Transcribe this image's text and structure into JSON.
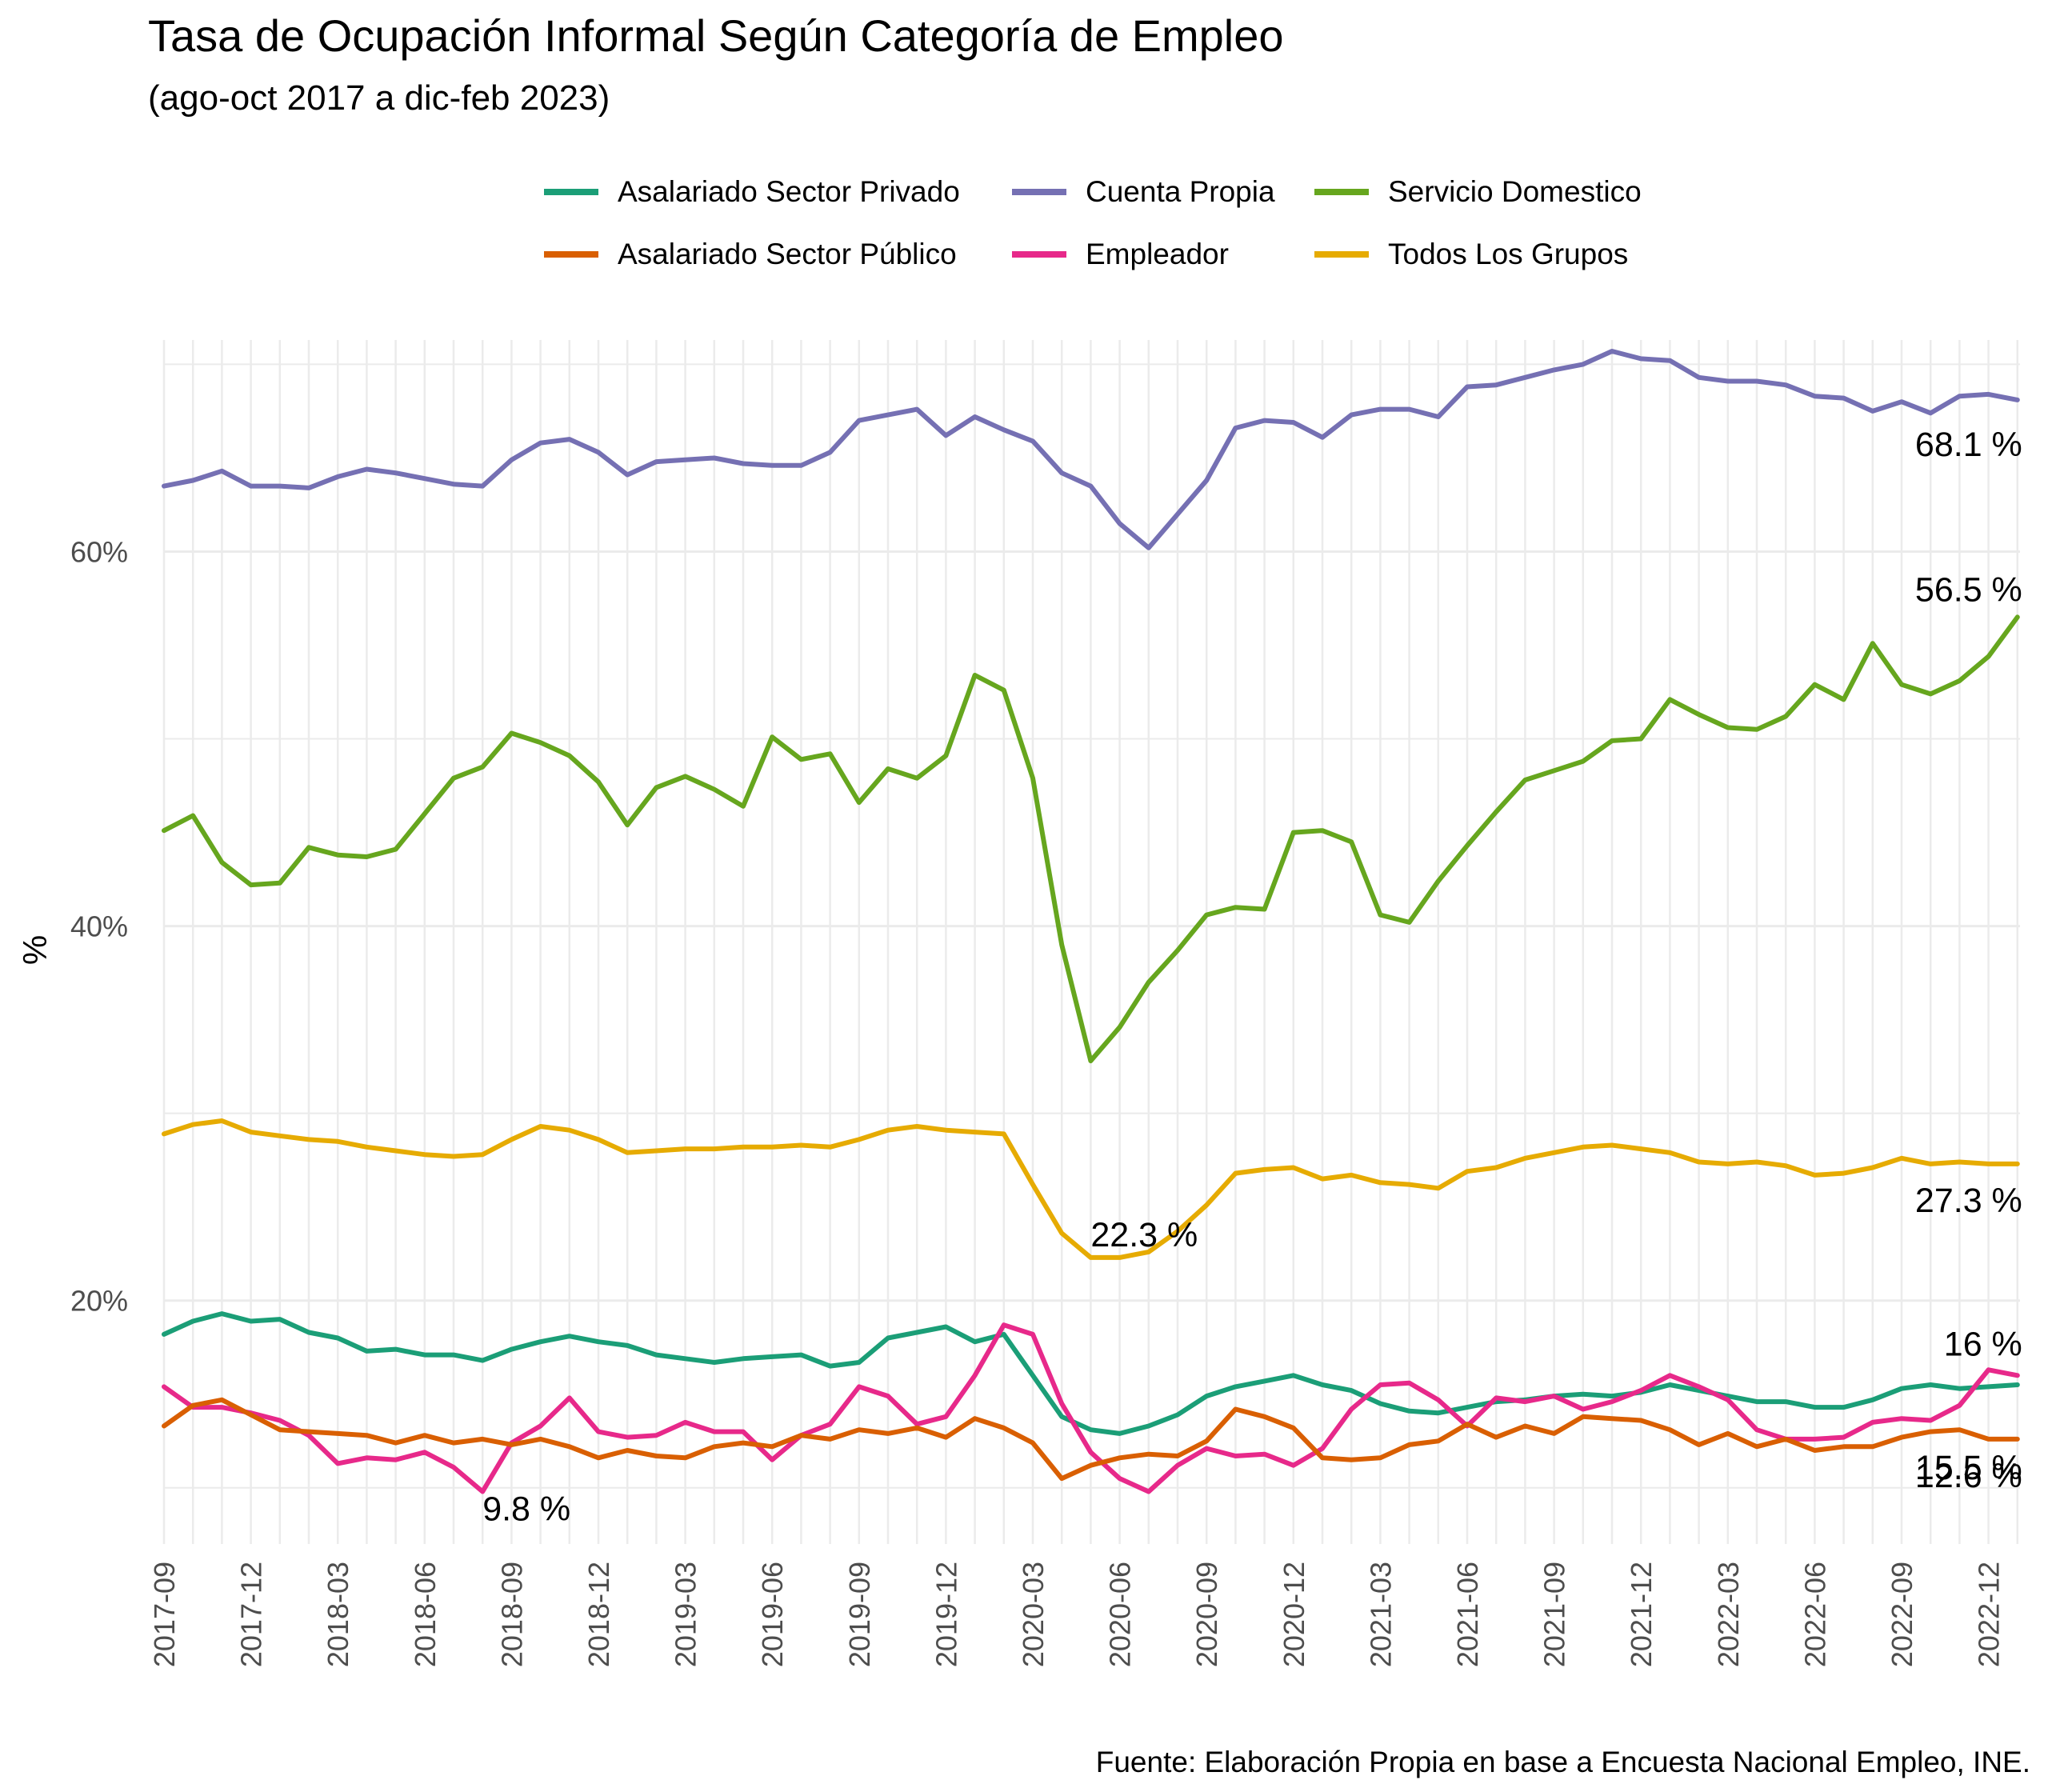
{
  "title": "Tasa de Ocupación Informal Según Categoría de Empleo",
  "subtitle": "(ago-oct 2017 a dic-feb 2023)",
  "caption": "Fuente: Elaboración Propia en base a Encuesta Nacional Empleo, INE.",
  "colors": {
    "privado": "#1B9E77",
    "publico": "#D95F02",
    "propia": "#7570B3",
    "empleador": "#E7298A",
    "domestico": "#66A61E",
    "todos": "#E6AB02"
  },
  "legend": [
    {
      "label": "Asalariado Sector Privado",
      "color": "#1B9E77"
    },
    {
      "label": "Cuenta Propia",
      "color": "#7570B3"
    },
    {
      "label": "Servicio Domestico",
      "color": "#66A61E"
    },
    {
      "label": "Asalariado Sector Público",
      "color": "#D95F02"
    },
    {
      "label": "Empleador",
      "color": "#E7298A"
    },
    {
      "label": "Todos Los Grupos",
      "color": "#E6AB02"
    }
  ],
  "chart_data": {
    "type": "line",
    "title": "Tasa de Ocupación Informal Según Categoría de Empleo",
    "subtitle": "(ago-oct 2017 a dic-feb 2023)",
    "xlabel": "",
    "ylabel": "%",
    "x": [
      "2017-09",
      "2017-10",
      "2017-11",
      "2017-12",
      "2018-01",
      "2018-02",
      "2018-03",
      "2018-04",
      "2018-05",
      "2018-06",
      "2018-07",
      "2018-08",
      "2018-09",
      "2018-10",
      "2018-11",
      "2018-12",
      "2019-01",
      "2019-02",
      "2019-03",
      "2019-04",
      "2019-05",
      "2019-06",
      "2019-07",
      "2019-08",
      "2019-09",
      "2019-10",
      "2019-11",
      "2019-12",
      "2020-01",
      "2020-02",
      "2020-03",
      "2020-04",
      "2020-05",
      "2020-06",
      "2020-07",
      "2020-08",
      "2020-09",
      "2020-10",
      "2020-11",
      "2020-12",
      "2021-01",
      "2021-02",
      "2021-03",
      "2021-04",
      "2021-05",
      "2021-06",
      "2021-07",
      "2021-08",
      "2021-09",
      "2021-10",
      "2021-11",
      "2021-12",
      "2022-01",
      "2022-02",
      "2022-03",
      "2022-04",
      "2022-05",
      "2022-06",
      "2022-07",
      "2022-08",
      "2022-09",
      "2022-10",
      "2022-11",
      "2022-12",
      "2023-01"
    ],
    "x_tick_labels": [
      "2017-09",
      "2017-12",
      "2018-03",
      "2018-06",
      "2018-09",
      "2018-12",
      "2019-03",
      "2019-06",
      "2019-09",
      "2019-12",
      "2020-03",
      "2020-06",
      "2020-09",
      "2020-12",
      "2021-03",
      "2021-06",
      "2021-09",
      "2021-12",
      "2022-03",
      "2022-06",
      "2022-09",
      "2022-12"
    ],
    "y_ticks": [
      20,
      40,
      60
    ],
    "y_tick_labels": [
      "20%",
      "40%",
      "60%"
    ],
    "ylim": [
      7,
      71.3
    ],
    "grid": true,
    "legend_position": "top",
    "series": [
      {
        "name": "Cuenta Propia",
        "color": "#7570B3",
        "values": [
          63.5,
          63.8,
          64.3,
          63.5,
          63.5,
          63.4,
          64.0,
          64.4,
          64.2,
          63.9,
          63.6,
          63.5,
          64.9,
          65.8,
          66.0,
          65.3,
          64.1,
          64.8,
          64.9,
          65.0,
          64.7,
          64.6,
          64.6,
          65.3,
          67.0,
          67.3,
          67.6,
          66.2,
          67.2,
          66.5,
          65.9,
          64.2,
          63.5,
          61.5,
          60.2,
          62.0,
          63.8,
          66.6,
          67.0,
          66.9,
          66.1,
          67.3,
          67.6,
          67.6,
          67.2,
          68.8,
          68.9,
          69.3,
          69.7,
          70.0,
          70.7,
          70.3,
          70.2,
          69.3,
          69.1,
          69.1,
          68.9,
          68.3,
          68.2,
          67.5,
          68.0,
          67.4,
          68.3,
          68.4,
          68.1
        ]
      },
      {
        "name": "Servicio Domestico",
        "color": "#66A61E",
        "values": [
          45.1,
          45.9,
          43.4,
          42.2,
          42.3,
          44.2,
          43.8,
          43.7,
          44.1,
          46.0,
          47.9,
          48.5,
          50.3,
          49.8,
          49.1,
          47.7,
          45.4,
          47.4,
          48.0,
          47.3,
          46.4,
          50.1,
          48.9,
          49.2,
          46.6,
          48.4,
          47.9,
          49.1,
          53.4,
          52.6,
          47.9,
          39.0,
          32.8,
          34.6,
          37.0,
          38.7,
          40.6,
          41.0,
          40.9,
          45.0,
          45.1,
          44.5,
          40.6,
          40.2,
          42.4,
          44.3,
          46.1,
          47.8,
          48.3,
          48.8,
          49.9,
          50.0,
          52.1,
          51.3,
          50.6,
          50.5,
          51.2,
          52.9,
          52.1,
          55.1,
          52.9,
          52.4,
          53.1,
          54.4,
          56.5
        ]
      },
      {
        "name": "Todos Los Grupos",
        "color": "#E6AB02",
        "values": [
          28.9,
          29.4,
          29.6,
          29.0,
          28.8,
          28.6,
          28.5,
          28.2,
          28.0,
          27.8,
          27.7,
          27.8,
          28.6,
          29.3,
          29.1,
          28.6,
          27.9,
          28.0,
          28.1,
          28.1,
          28.2,
          28.2,
          28.3,
          28.2,
          28.6,
          29.1,
          29.3,
          29.1,
          29.0,
          28.9,
          26.2,
          23.6,
          22.3,
          22.3,
          22.6,
          23.7,
          25.1,
          26.8,
          27.0,
          27.1,
          26.5,
          26.7,
          26.3,
          26.2,
          26.0,
          26.9,
          27.1,
          27.6,
          27.9,
          28.2,
          28.3,
          28.1,
          27.9,
          27.4,
          27.3,
          27.4,
          27.2,
          26.7,
          26.8,
          27.1,
          27.6,
          27.3,
          27.4,
          27.3,
          27.3
        ]
      },
      {
        "name": "Asalariado Sector Privado",
        "color": "#1B9E77",
        "values": [
          18.2,
          18.9,
          19.3,
          18.9,
          19.0,
          18.3,
          18.0,
          17.3,
          17.4,
          17.1,
          17.1,
          16.8,
          17.4,
          17.8,
          18.1,
          17.8,
          17.6,
          17.1,
          16.9,
          16.7,
          16.9,
          17.0,
          17.1,
          16.5,
          16.7,
          18.0,
          18.3,
          18.6,
          17.8,
          18.2,
          16.0,
          13.8,
          13.1,
          12.9,
          13.3,
          13.9,
          14.9,
          15.4,
          15.7,
          16.0,
          15.5,
          15.2,
          14.5,
          14.1,
          14.0,
          14.3,
          14.6,
          14.7,
          14.9,
          15.0,
          14.9,
          15.1,
          15.5,
          15.2,
          14.9,
          14.6,
          14.6,
          14.3,
          14.3,
          14.7,
          15.3,
          15.5,
          15.3,
          15.4,
          15.5
        ]
      },
      {
        "name": "Empleador",
        "color": "#E7298A",
        "values": [
          15.4,
          14.3,
          14.3,
          14.0,
          13.6,
          12.8,
          11.3,
          11.6,
          11.5,
          11.9,
          11.1,
          9.8,
          12.4,
          13.3,
          14.8,
          13.0,
          12.7,
          12.8,
          13.5,
          13.0,
          13.0,
          11.5,
          12.8,
          13.4,
          15.4,
          14.9,
          13.4,
          13.8,
          16.0,
          18.7,
          18.2,
          14.5,
          11.9,
          10.5,
          9.8,
          11.2,
          12.1,
          11.7,
          11.8,
          11.2,
          12.1,
          14.2,
          15.5,
          15.6,
          14.7,
          13.3,
          14.8,
          14.6,
          14.9,
          14.2,
          14.6,
          15.2,
          16.0,
          15.4,
          14.7,
          13.1,
          12.6,
          12.6,
          12.7,
          13.5,
          13.7,
          13.6,
          14.4,
          16.3,
          16.0
        ]
      },
      {
        "name": "Asalariado Sector Público",
        "color": "#D95F02",
        "values": [
          13.3,
          14.4,
          14.7,
          13.9,
          13.1,
          13.0,
          12.9,
          12.8,
          12.4,
          12.8,
          12.4,
          12.6,
          12.3,
          12.6,
          12.2,
          11.6,
          12.0,
          11.7,
          11.6,
          12.2,
          12.4,
          12.2,
          12.8,
          12.6,
          13.1,
          12.9,
          13.2,
          12.7,
          13.7,
          13.2,
          12.4,
          10.5,
          11.2,
          11.6,
          11.8,
          11.7,
          12.5,
          14.2,
          13.8,
          13.2,
          11.6,
          11.5,
          11.6,
          12.3,
          12.5,
          13.4,
          12.7,
          13.3,
          12.9,
          13.8,
          13.7,
          13.6,
          13.1,
          12.3,
          12.9,
          12.2,
          12.6,
          12.0,
          12.2,
          12.2,
          12.7,
          13.0,
          13.1,
          12.6,
          12.6
        ]
      }
    ],
    "annotations": [
      {
        "text": "68.1 %",
        "x": "2023-01",
        "y": 68.1
      },
      {
        "text": "56.5 %",
        "x": "2023-01",
        "y": 56.5
      },
      {
        "text": "27.3 %",
        "x": "2023-01",
        "y": 27.3
      },
      {
        "text": "22.3 %",
        "x": "2020-05",
        "y": 22.3
      },
      {
        "text": "16 %",
        "x": "2023-01",
        "y": 16
      },
      {
        "text": "15.5 %",
        "x": "2023-01",
        "y": 15.5
      },
      {
        "text": "12.6 %",
        "x": "2023-01",
        "y": 12.6
      },
      {
        "text": "9.8 %",
        "x": "2018-08",
        "y": 9.8
      }
    ]
  }
}
